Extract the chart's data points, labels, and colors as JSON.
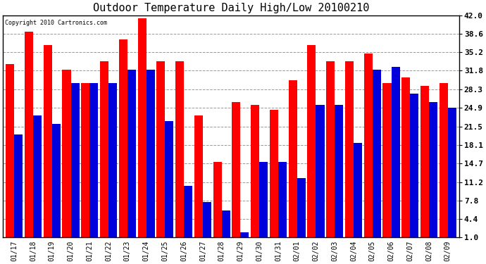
{
  "title": "Outdoor Temperature Daily High/Low 20100210",
  "copyright": "Copyright 2010 Cartronics.com",
  "dates": [
    "01/17",
    "01/18",
    "01/19",
    "01/20",
    "01/21",
    "01/22",
    "01/23",
    "01/24",
    "01/25",
    "01/26",
    "01/27",
    "01/28",
    "01/29",
    "01/30",
    "01/31",
    "02/01",
    "02/02",
    "02/03",
    "02/04",
    "02/05",
    "02/06",
    "02/07",
    "02/08",
    "02/09"
  ],
  "highs": [
    33.0,
    39.0,
    36.5,
    32.0,
    29.5,
    33.5,
    37.5,
    41.5,
    33.5,
    33.5,
    23.5,
    15.0,
    26.0,
    25.5,
    24.5,
    30.0,
    36.5,
    33.5,
    33.5,
    35.0,
    29.5,
    30.5,
    29.0,
    29.5
  ],
  "lows": [
    20.0,
    23.5,
    22.0,
    29.5,
    29.5,
    29.5,
    32.0,
    32.0,
    22.5,
    10.5,
    7.5,
    6.0,
    2.0,
    15.0,
    15.0,
    12.0,
    25.5,
    25.5,
    18.5,
    32.0,
    32.5,
    27.5,
    26.0,
    25.0
  ],
  "high_color": "#ff0000",
  "low_color": "#0000dd",
  "bg_color": "#ffffff",
  "grid_color": "#999999",
  "yticks": [
    1.0,
    4.4,
    7.8,
    11.2,
    14.7,
    18.1,
    21.5,
    24.9,
    28.3,
    31.8,
    35.2,
    38.6,
    42.0
  ],
  "ymin": 1.0,
  "ymax": 42.0,
  "figwidth": 6.9,
  "figheight": 3.75,
  "dpi": 100
}
